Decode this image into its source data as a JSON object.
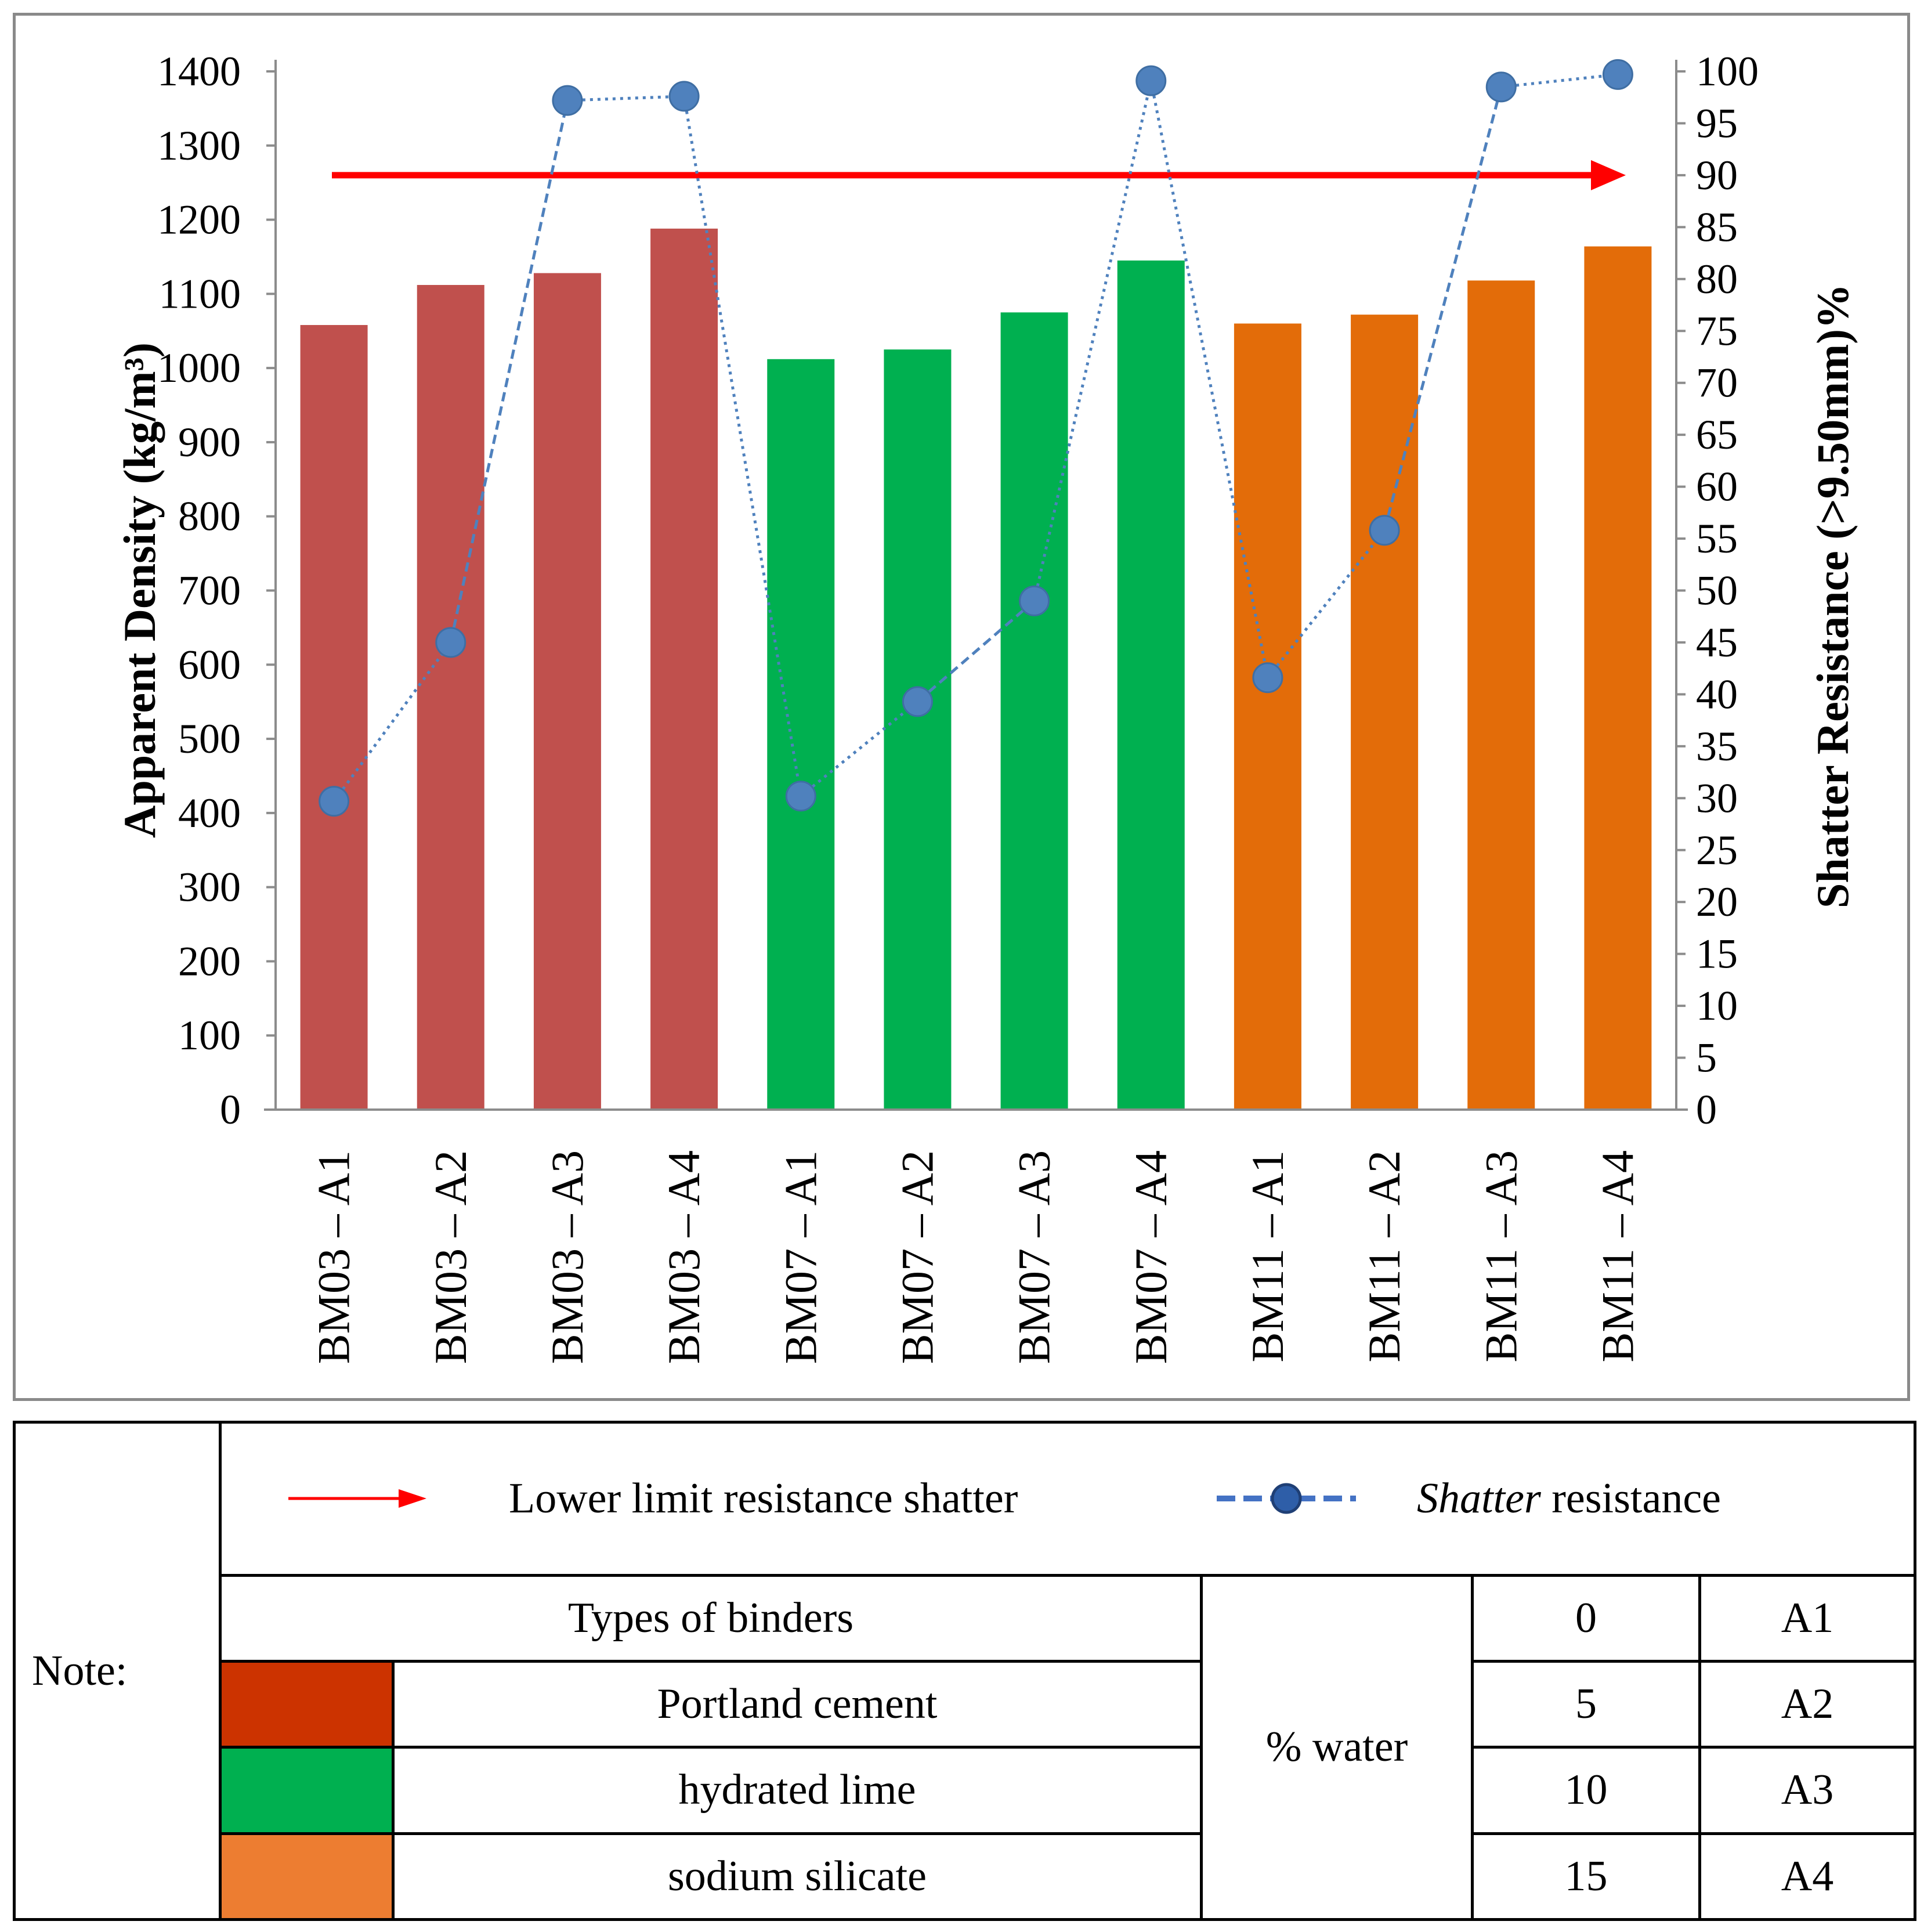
{
  "chart_data": {
    "type": "bar",
    "categories": [
      "BM03 – A1",
      "BM03 – A2",
      "BM03 – A3",
      "BM03 – A4",
      "BM07 – A1",
      "BM07 – A2",
      "BM07 – A3",
      "BM07 – A4",
      "BM11 – A1",
      "BM11 – A2",
      "BM11 – A3",
      "BM11 – A4"
    ],
    "series": [
      {
        "name": "Apparent Density",
        "axis": "left",
        "values": [
          1058,
          1112,
          1128,
          1188,
          1012,
          1025,
          1075,
          1145,
          1060,
          1072,
          1118,
          1164
        ],
        "colors": [
          "#c0504d",
          "#c0504d",
          "#c0504d",
          "#c0504d",
          "#00b050",
          "#00b050",
          "#00b050",
          "#00b050",
          "#e36c09",
          "#e36c09",
          "#e36c09",
          "#e36c09"
        ]
      },
      {
        "name": "Shatter resistance",
        "axis": "right",
        "type": "line",
        "values": [
          29.7,
          45.0,
          97.2,
          97.6,
          30.2,
          39.3,
          49.0,
          99.1,
          41.6,
          55.8,
          98.5,
          99.7
        ],
        "color": "#4f81bd"
      }
    ],
    "reference_line": {
      "name": "Lower limit resistance shatter",
      "value": 90,
      "axis": "right",
      "color": "#ff0000"
    },
    "ylabel_left": "Apparent Density (kg/m³)",
    "ylabel_right": "Shatter Resistance (>9.50mm)%",
    "ylim_left": [
      0,
      1400
    ],
    "ylim_right": [
      0,
      100
    ],
    "yticks_left": [
      "0",
      "100",
      "200",
      "300",
      "400",
      "500",
      "600",
      "700",
      "800",
      "900",
      "1000",
      "1100",
      "1200",
      "1300",
      "1400"
    ],
    "yticks_right": [
      "0",
      "5",
      "10",
      "15",
      "20",
      "25",
      "30",
      "35",
      "40",
      "45",
      "50",
      "55",
      "60",
      "65",
      "70",
      "75",
      "80",
      "85",
      "90",
      "95",
      "100"
    ],
    "grid": false
  },
  "legend": {
    "note_label": "Note:",
    "limit_label": "Lower limit resistance shatter",
    "shatter_label_italic": "Shatter",
    "shatter_label_rest": " resistance",
    "binders_header": "Types of binders",
    "binders": [
      {
        "label": "Portland cement",
        "color": "#cc3300"
      },
      {
        "label": "hydrated lime",
        "color": "#00b050"
      },
      {
        "label": "sodium silicate",
        "color": "#ed7d31"
      }
    ],
    "water_label": "% water",
    "water_levels": [
      {
        "value": "0",
        "code": "A1"
      },
      {
        "value": "5",
        "code": "A2"
      },
      {
        "value": "10",
        "code": "A3"
      },
      {
        "value": "15",
        "code": "A4"
      }
    ]
  }
}
